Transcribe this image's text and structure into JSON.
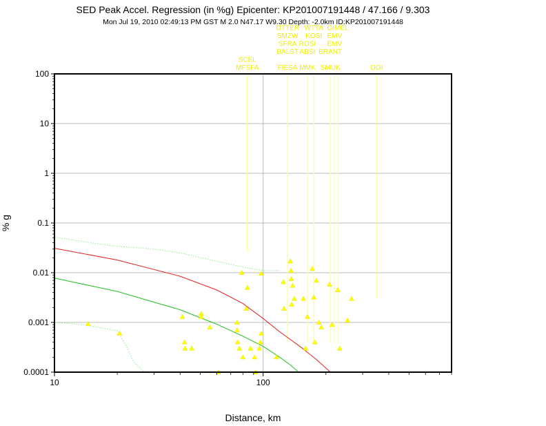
{
  "chart_data": {
    "type": "scatter",
    "title": "SED Peak Accel. Regression (in %g) Epicenter: KP201007191448 / 47.166 / 9.303",
    "subtitle": "Mon Jul 19, 2010 02:49:13 PM GST   M 2.0   N47.17 W9.30   Depth: -2.0km   ID:KP201007191448",
    "xlabel": "Distance, km",
    "ylabel": "% g",
    "x_scale": "log",
    "y_scale": "log",
    "xlim": [
      10,
      800
    ],
    "ylim": [
      0.0001,
      100
    ],
    "grid": true,
    "x_ticks": [
      {
        "value": 10,
        "label": "10"
      },
      {
        "value": 100,
        "label": "100"
      }
    ],
    "y_ticks": [
      {
        "value": 100,
        "label": "100"
      },
      {
        "value": 10,
        "label": "10"
      },
      {
        "value": 1,
        "label": "1"
      },
      {
        "value": 0.1,
        "label": "0.1"
      },
      {
        "value": 0.01,
        "label": "0.01"
      },
      {
        "value": 0.001,
        "label": "0.001"
      },
      {
        "value": 0.0001,
        "label": "0.0001"
      }
    ],
    "colors": {
      "points": "#ffff00",
      "station_lines": "#ffff99",
      "station_labels": "#eeee00",
      "regression": "#e02020",
      "lower_fit": "#20c020",
      "envelope_dotted": "#90e890",
      "axis_frame": "#000000",
      "grid": "#bbbbbb"
    },
    "curves": [
      {
        "name": "regression",
        "style": "solid",
        "x": [
          10,
          20,
          40,
          60,
          80,
          100,
          120,
          150,
          180,
          210
        ],
        "y": [
          0.031,
          0.018,
          0.0085,
          0.0045,
          0.0024,
          0.0012,
          0.00065,
          0.00033,
          0.00018,
          0.0001
        ]
      },
      {
        "name": "lower_fit",
        "style": "solid",
        "x": [
          10,
          20,
          40,
          60,
          80,
          100,
          120,
          135,
          148
        ],
        "y": [
          0.0078,
          0.0042,
          0.0018,
          0.00092,
          0.00053,
          0.00033,
          0.0002,
          0.00014,
          0.0001
        ]
      },
      {
        "name": "upper_envelope",
        "style": "dotted",
        "x": [
          10,
          15,
          20,
          30,
          40,
          60,
          80,
          100,
          120
        ],
        "y": [
          0.052,
          0.04,
          0.034,
          0.03,
          0.025,
          0.017,
          0.013,
          0.011,
          0.011
        ]
      },
      {
        "name": "lower_envelope",
        "style": "dotted",
        "x": [
          10,
          14,
          20,
          22,
          24,
          27
        ],
        "y": [
          0.001,
          0.0009,
          0.00068,
          0.00035,
          0.00016,
          0.0001
        ]
      }
    ],
    "points": [
      {
        "x": 14.5,
        "y": 0.00093
      },
      {
        "x": 20.5,
        "y": 0.0006
      },
      {
        "x": 41,
        "y": 0.0013
      },
      {
        "x": 42,
        "y": 0.0004
      },
      {
        "x": 42.3,
        "y": 0.0003
      },
      {
        "x": 45.5,
        "y": 0.0003
      },
      {
        "x": 50.5,
        "y": 0.0015
      },
      {
        "x": 50.5,
        "y": 0.0013
      },
      {
        "x": 55.5,
        "y": 0.0008
      },
      {
        "x": 61,
        "y": 0.0001
      },
      {
        "x": 75,
        "y": 0.001
      },
      {
        "x": 75,
        "y": 0.0007
      },
      {
        "x": 75.5,
        "y": 0.0004
      },
      {
        "x": 77,
        "y": 0.0003
      },
      {
        "x": 79,
        "y": 0.01
      },
      {
        "x": 80,
        "y": 0.0002
      },
      {
        "x": 83,
        "y": 0.0019
      },
      {
        "x": 84,
        "y": 0.005
      },
      {
        "x": 87,
        "y": 0.0003
      },
      {
        "x": 91,
        "y": 0.0002
      },
      {
        "x": 92,
        "y": 0.0001
      },
      {
        "x": 96,
        "y": 0.0003
      },
      {
        "x": 97,
        "y": 0.0004
      },
      {
        "x": 98,
        "y": 0.0096
      },
      {
        "x": 98,
        "y": 0.0006
      },
      {
        "x": 116,
        "y": 0.0002
      },
      {
        "x": 125,
        "y": 0.0065
      },
      {
        "x": 126,
        "y": 0.0019
      },
      {
        "x": 135,
        "y": 0.017
      },
      {
        "x": 136,
        "y": 0.011
      },
      {
        "x": 136.5,
        "y": 0.0075
      },
      {
        "x": 137,
        "y": 0.0023
      },
      {
        "x": 138.5,
        "y": 0.0055
      },
      {
        "x": 141,
        "y": 0.003
      },
      {
        "x": 156,
        "y": 0.003
      },
      {
        "x": 160,
        "y": 0.0003
      },
      {
        "x": 163,
        "y": 0.0013
      },
      {
        "x": 172,
        "y": 0.012
      },
      {
        "x": 175,
        "y": 0.0032
      },
      {
        "x": 177,
        "y": 0.0004
      },
      {
        "x": 180,
        "y": 0.007
      },
      {
        "x": 185,
        "y": 0.001
      },
      {
        "x": 190,
        "y": 0.0008
      },
      {
        "x": 208,
        "y": 0.0058
      },
      {
        "x": 214,
        "y": 0.0009
      },
      {
        "x": 228,
        "y": 0.0045
      },
      {
        "x": 233,
        "y": 0.0003
      },
      {
        "x": 254,
        "y": 0.0011
      },
      {
        "x": 265,
        "y": 0.003
      }
    ],
    "stations": [
      {
        "label": "SCEL",
        "x": 84,
        "row": 1,
        "y_end": 0.026
      },
      {
        "label": "MFSFA",
        "x": 84,
        "row": 0,
        "y_end": 0.026
      },
      {
        "label": "OTTER",
        "x": 131,
        "row": 5,
        "y_end": 0.0004
      },
      {
        "label": "SMZW",
        "x": 131,
        "row": 4,
        "y_end": 0.0004
      },
      {
        "label": "SFRA",
        "x": 131,
        "row": 3,
        "y_end": 0.0004
      },
      {
        "label": "BALST",
        "x": 131,
        "row": 2,
        "y_end": 0.0004
      },
      {
        "label": "FIESA",
        "x": 131,
        "row": 0,
        "y_end": 0.0004
      },
      {
        "label": "WTTA",
        "x": 175,
        "row": 5,
        "y_end": 0.0004
      },
      {
        "label": "KOSI",
        "x": 175,
        "row": 4,
        "y_end": 0.0004
      },
      {
        "label": "ROSI",
        "x": 163,
        "row": 3,
        "y_end": 0.0004
      },
      {
        "label": "ABSI",
        "x": 163,
        "row": 2,
        "y_end": 0.0004
      },
      {
        "label": "MMK",
        "x": 163,
        "row": 0,
        "y_end": 0.0004
      },
      {
        "label": "GIMEL",
        "x": 228,
        "row": 5,
        "y_end": 0.0004
      },
      {
        "label": "EMV",
        "x": 220,
        "row": 4,
        "y_end": 0.0004
      },
      {
        "label": "EMV",
        "x": 220,
        "row": 3,
        "y_end": 0.0004
      },
      {
        "label": "BRANT",
        "x": 210,
        "row": 2,
        "y_end": 0.0004
      },
      {
        "label": "SMUK",
        "x": 210,
        "row": 0,
        "y_end": 0.0004
      },
      {
        "label": "DOI",
        "x": 350,
        "row": 0,
        "y_end": 0.003
      }
    ]
  }
}
